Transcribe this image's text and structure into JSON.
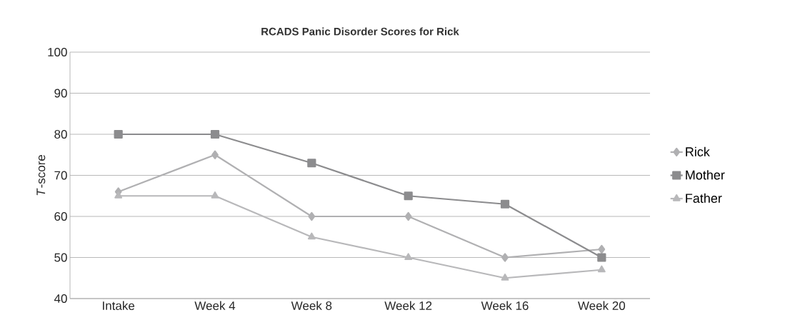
{
  "chart_data": {
    "type": "line",
    "title": "RCADS Panic Disorder Scores for Rick",
    "ylabel": "*T*-score",
    "categories": [
      "Intake",
      "Week 4",
      "Week 8",
      "Week 12",
      "Week 16",
      "Week 20"
    ],
    "series": [
      {
        "name": "Rick",
        "color": "#b0b0b2",
        "marker": "diamond",
        "values": [
          66,
          75,
          60,
          60,
          50,
          52
        ]
      },
      {
        "name": "Mother",
        "color": "#8c8c8e",
        "marker": "square",
        "values": [
          80,
          80,
          73,
          65,
          63,
          50
        ]
      },
      {
        "name": "Father",
        "color": "#b8b8ba",
        "marker": "triangle",
        "values": [
          65,
          65,
          55,
          50,
          45,
          47
        ]
      }
    ],
    "ylim": [
      40,
      100
    ],
    "yticks": [
      40,
      50,
      60,
      70,
      80,
      90,
      100
    ],
    "grid": "y",
    "legend": "right",
    "line_style": "solid"
  }
}
